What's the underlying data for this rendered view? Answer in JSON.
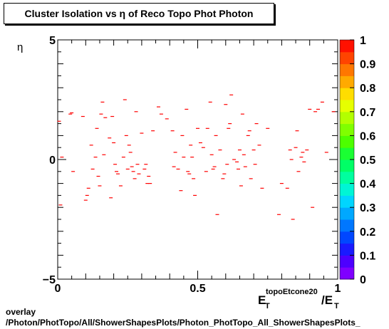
{
  "chart_data": {
    "type": "scatter",
    "title": "Cluster Isolation vs  η of Reco Topo Phot Photon",
    "ylabel": "η",
    "xlabel": {
      "main": "E",
      "sub": "T",
      "sup": "topoEtcone20",
      "slash": "/E",
      "sub2": "T"
    },
    "xlim": [
      0,
      1
    ],
    "ylim": [
      -5,
      5
    ],
    "x_ticks": [
      0,
      0.5,
      1
    ],
    "x_tick_labels": [
      "0",
      "0.5",
      "1"
    ],
    "y_ticks": [
      -5,
      0,
      5
    ],
    "y_tick_labels": [
      "−5",
      "0",
      "5"
    ],
    "colorbar": {
      "range": [
        0,
        1
      ],
      "tick_labels": [
        "0",
        "0.1",
        "0.2",
        "0.3",
        "0.4",
        "0.5",
        "0.6",
        "0.7",
        "0.8",
        "0.9",
        "1"
      ],
      "colors": [
        "#7f00ff",
        "#4d00ff",
        "#1a1aff",
        "#0047ff",
        "#0077ff",
        "#00a8ff",
        "#00d5ff",
        "#00f5d5",
        "#00ff9f",
        "#00ff66",
        "#1aff33",
        "#4dff00",
        "#80ff00",
        "#b3ff00",
        "#e6ff00",
        "#ffdd00",
        "#ffaa00",
        "#ff7700",
        "#ff4400",
        "#ff1100"
      ]
    },
    "marker_color": "#ff0000",
    "points": [
      [
        0.005,
        1.6
      ],
      [
        0.01,
        -1.9
      ],
      [
        0.015,
        0.1
      ],
      [
        0.045,
        1.9
      ],
      [
        0.05,
        1.95
      ],
      [
        0.055,
        -0.5
      ],
      [
        0.09,
        1.8
      ],
      [
        0.1,
        -1.7
      ],
      [
        0.105,
        -1.5
      ],
      [
        0.11,
        -1.2
      ],
      [
        0.12,
        0.6
      ],
      [
        0.125,
        -0.4
      ],
      [
        0.135,
        0.1
      ],
      [
        0.14,
        1.3
      ],
      [
        0.145,
        -0.7
      ],
      [
        0.15,
        -1.1
      ],
      [
        0.155,
        1.9
      ],
      [
        0.16,
        2.4
      ],
      [
        0.165,
        0.2
      ],
      [
        0.17,
        1.75
      ],
      [
        0.185,
        0.9
      ],
      [
        0.19,
        -1.6
      ],
      [
        0.195,
        1.8
      ],
      [
        0.2,
        0.7
      ],
      [
        0.205,
        -0.2
      ],
      [
        0.21,
        -0.5
      ],
      [
        0.215,
        -0.6
      ],
      [
        0.225,
        -1.1
      ],
      [
        0.235,
        0.1
      ],
      [
        0.24,
        2.5
      ],
      [
        0.245,
        1.0
      ],
      [
        0.25,
        -0.4
      ],
      [
        0.255,
        0.6
      ],
      [
        0.26,
        0.3
      ],
      [
        0.265,
        -0.3
      ],
      [
        0.27,
        -0.5
      ],
      [
        0.275,
        -0.8
      ],
      [
        0.28,
        2.0
      ],
      [
        0.285,
        -0.2
      ],
      [
        0.29,
        -0.6
      ],
      [
        0.3,
        1.1
      ],
      [
        0.31,
        -0.4
      ],
      [
        0.315,
        -0.2
      ],
      [
        0.32,
        -1.0
      ],
      [
        0.325,
        -0.7
      ],
      [
        0.33,
        -1.0
      ],
      [
        0.34,
        1.2
      ],
      [
        0.36,
        2.2
      ],
      [
        0.37,
        1.9
      ],
      [
        0.39,
        1.7
      ],
      [
        0.41,
        1.2
      ],
      [
        0.415,
        -0.3
      ],
      [
        0.42,
        0.3
      ],
      [
        0.43,
        -0.4
      ],
      [
        0.44,
        -1.3
      ],
      [
        0.445,
        1.0
      ],
      [
        0.45,
        0.1
      ],
      [
        0.46,
        2.1
      ],
      [
        0.465,
        -0.5
      ],
      [
        0.47,
        -0.6
      ],
      [
        0.475,
        0.6
      ],
      [
        0.48,
        0.1
      ],
      [
        0.485,
        -0.8
      ],
      [
        0.49,
        -1.5
      ],
      [
        0.5,
        1.3
      ],
      [
        0.51,
        0.7
      ],
      [
        0.52,
        0.5
      ],
      [
        0.53,
        -0.5
      ],
      [
        0.535,
        1.3
      ],
      [
        0.545,
        2.4
      ],
      [
        0.55,
        0.2
      ],
      [
        0.555,
        -0.4
      ],
      [
        0.56,
        -0.3
      ],
      [
        0.565,
        1.0
      ],
      [
        0.57,
        -2.3
      ],
      [
        0.58,
        0.4
      ],
      [
        0.59,
        -0.8
      ],
      [
        0.595,
        -0.6
      ],
      [
        0.6,
        2.3
      ],
      [
        0.605,
        -0.2
      ],
      [
        0.61,
        1.3
      ],
      [
        0.615,
        1.5
      ],
      [
        0.62,
        2.7
      ],
      [
        0.63,
        0.0
      ],
      [
        0.64,
        -0.1
      ],
      [
        0.645,
        -0.4
      ],
      [
        0.65,
        0.4
      ],
      [
        0.655,
        -1.1
      ],
      [
        0.66,
        1.9
      ],
      [
        0.665,
        0.2
      ],
      [
        0.67,
        -0.3
      ],
      [
        0.68,
        1.0
      ],
      [
        0.685,
        1.2
      ],
      [
        0.69,
        -0.8
      ],
      [
        0.7,
        0.4
      ],
      [
        0.705,
        -0.2
      ],
      [
        0.71,
        1.5
      ],
      [
        0.72,
        0.6
      ],
      [
        0.73,
        -1.2
      ],
      [
        0.75,
        1.3
      ],
      [
        0.79,
        -2.3
      ],
      [
        0.8,
        -1.0
      ],
      [
        0.82,
        -1.2
      ],
      [
        0.83,
        0.4
      ],
      [
        0.835,
        0.0
      ],
      [
        0.84,
        -2.5
      ],
      [
        0.85,
        0.5
      ],
      [
        0.855,
        1.2
      ],
      [
        0.86,
        -0.5
      ],
      [
        0.87,
        0.1
      ],
      [
        0.875,
        0.3
      ],
      [
        0.88,
        -0.1
      ],
      [
        0.89,
        0.4
      ],
      [
        0.9,
        2.1
      ],
      [
        0.91,
        -2.0
      ],
      [
        0.92,
        2.0
      ],
      [
        0.93,
        2.1
      ],
      [
        0.945,
        2.4
      ],
      [
        0.96,
        0.3
      ],
      [
        0.985,
        2.0
      ]
    ]
  },
  "footer": {
    "line1": "overlay",
    "line2": "/Photon/PhotTopo/All/ShowerShapesPlots/Photon_PhotTopo_All_ShowerShapesPlots_"
  }
}
